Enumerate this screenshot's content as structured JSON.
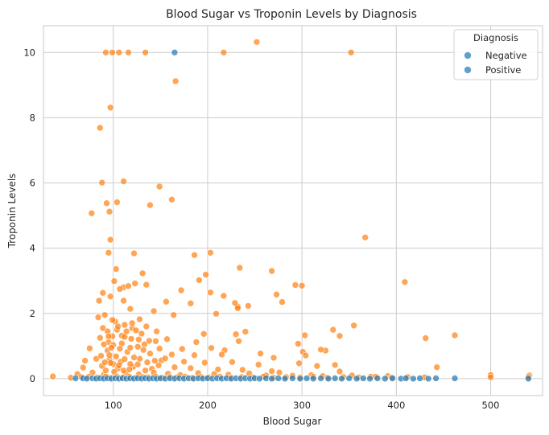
{
  "chart_data": {
    "type": "scatter",
    "title": "Blood Sugar vs Troponin Levels by Diagnosis",
    "xlabel": "Blood Sugar",
    "ylabel": "Troponin Levels",
    "xlim": [
      26,
      555
    ],
    "ylim": [
      -0.52,
      10.82
    ],
    "xticks": [
      100,
      200,
      300,
      400,
      500
    ],
    "yticks": [
      0,
      2,
      4,
      6,
      8,
      10
    ],
    "grid": true,
    "legend": {
      "title": "Diagnosis",
      "placement": "top-right",
      "entries": [
        "Negative",
        "Positive"
      ]
    },
    "series": [
      {
        "name": "Positive",
        "color": "#ff7f0e",
        "points": [
          [
            92,
            10
          ],
          [
            99,
            10
          ],
          [
            106,
            10
          ],
          [
            116,
            10
          ],
          [
            134,
            10
          ],
          [
            217,
            10
          ],
          [
            252,
            10.32
          ],
          [
            352,
            10
          ],
          [
            166,
            9.12
          ],
          [
            97,
            8.31
          ],
          [
            86,
            7.69
          ],
          [
            111,
            6.05
          ],
          [
            88,
            6.01
          ],
          [
            149,
            5.89
          ],
          [
            104,
            5.41
          ],
          [
            93,
            5.38
          ],
          [
            162,
            5.49
          ],
          [
            139,
            5.32
          ],
          [
            96,
            5.12
          ],
          [
            77,
            5.07
          ],
          [
            367,
            4.33
          ],
          [
            97,
            4.26
          ],
          [
            95,
            3.86
          ],
          [
            122,
            3.84
          ],
          [
            203,
            3.86
          ],
          [
            186,
            3.79
          ],
          [
            234,
            3.4
          ],
          [
            103,
            3.36
          ],
          [
            268,
            3.3
          ],
          [
            131,
            3.23
          ],
          [
            198,
            3.19
          ],
          [
            101,
            2.99
          ],
          [
            409,
            2.96
          ],
          [
            191,
            3.02
          ],
          [
            300,
            2.85
          ],
          [
            123,
            2.92
          ],
          [
            135,
            2.88
          ],
          [
            111,
            2.8
          ],
          [
            116,
            2.84
          ],
          [
            293,
            2.87
          ],
          [
            89,
            2.63
          ],
          [
            97,
            2.52
          ],
          [
            107,
            2.75
          ],
          [
            172,
            2.71
          ],
          [
            203,
            2.64
          ],
          [
            232,
            2.21
          ],
          [
            273,
            2.58
          ],
          [
            243,
            2.23
          ],
          [
            85,
            2.39
          ],
          [
            111,
            2.39
          ],
          [
            156,
            2.36
          ],
          [
            217,
            2.54
          ],
          [
            229,
            2.32
          ],
          [
            232,
            2.16
          ],
          [
            279,
            2.35
          ],
          [
            84,
            1.88
          ],
          [
            118,
            2.14
          ],
          [
            102,
            1.75
          ],
          [
            91,
            1.95
          ],
          [
            143,
            2.07
          ],
          [
            164,
            1.95
          ],
          [
            182,
            2.31
          ],
          [
            209,
            1.99
          ],
          [
            355,
            1.63
          ],
          [
            120,
            1.55
          ],
          [
            130,
            1.38
          ],
          [
            146,
            1.45
          ],
          [
            196,
            1.37
          ],
          [
            230,
            1.36
          ],
          [
            240,
            1.44
          ],
          [
            303,
            1.33
          ],
          [
            340,
            1.31
          ],
          [
            86,
            1.25
          ],
          [
            95,
            1.12
          ],
          [
            109,
            1.08
          ],
          [
            138,
            1.16
          ],
          [
            157,
            1.21
          ],
          [
            188,
            1.12
          ],
          [
            233,
            1.15
          ],
          [
            296,
            1.07
          ],
          [
            333,
            1.5
          ],
          [
            431,
            1.24
          ],
          [
            462,
            1.33
          ],
          [
            100,
            1.03
          ],
          [
            126,
            0.98
          ],
          [
            149,
            0.92
          ],
          [
            173,
            0.91
          ],
          [
            204,
            0.94
          ],
          [
            218,
            0.87
          ],
          [
            256,
            0.77
          ],
          [
            301,
            0.82
          ],
          [
            325,
            0.86
          ],
          [
            75,
            0.93
          ],
          [
            94,
            0.86
          ],
          [
            115,
            0.82
          ],
          [
            139,
            0.77
          ],
          [
            162,
            0.74
          ],
          [
            186,
            0.72
          ],
          [
            215,
            0.74
          ],
          [
            270,
            0.64
          ],
          [
            320,
            0.89
          ],
          [
            304,
            0.71
          ],
          [
            70,
            0.55
          ],
          [
            82,
            0.61
          ],
          [
            96,
            0.58
          ],
          [
            108,
            0.52
          ],
          [
            128,
            0.61
          ],
          [
            151,
            0.56
          ],
          [
            175,
            0.52
          ],
          [
            197,
            0.49
          ],
          [
            226,
            0.51
          ],
          [
            254,
            0.43
          ],
          [
            297,
            0.47
          ],
          [
            335,
            0.42
          ],
          [
            443,
            0.35
          ],
          [
            68,
            0.34
          ],
          [
            88,
            0.39
          ],
          [
            105,
            0.31
          ],
          [
            121,
            0.36
          ],
          [
            141,
            0.3
          ],
          [
            165,
            0.35
          ],
          [
            182,
            0.32
          ],
          [
            211,
            0.28
          ],
          [
            237,
            0.27
          ],
          [
            268,
            0.23
          ],
          [
            316,
            0.39
          ],
          [
            340,
            0.22
          ],
          [
            62,
            0.14
          ],
          [
            78,
            0.19
          ],
          [
            90,
            0.12
          ],
          [
            101,
            0.21
          ],
          [
            113,
            0.16
          ],
          [
            127,
            0.13
          ],
          [
            143,
            0.18
          ],
          [
            158,
            0.15
          ],
          [
            171,
            0.11
          ],
          [
            190,
            0.17
          ],
          [
            207,
            0.14
          ],
          [
            222,
            0.12
          ],
          [
            244,
            0.16
          ],
          [
            262,
            0.1
          ],
          [
            276,
            0.19
          ],
          [
            290,
            0.09
          ],
          [
            310,
            0.11
          ],
          [
            322,
            0.08
          ],
          [
            353,
            0.1
          ],
          [
            373,
            0.06
          ],
          [
            391,
            0.08
          ],
          [
            500,
            0.11
          ],
          [
            541,
            0.1
          ],
          [
            36,
            0.07
          ],
          [
            55,
            0.03
          ],
          [
            66,
            0.05
          ],
          [
            74,
            0.06
          ],
          [
            83,
            0.04
          ],
          [
            92,
            0.07
          ],
          [
            98,
            0.03
          ],
          [
            104,
            0.06
          ],
          [
            110,
            0.04
          ],
          [
            117,
            0.06
          ],
          [
            124,
            0.03
          ],
          [
            131,
            0.05
          ],
          [
            137,
            0.04
          ],
          [
            145,
            0.06
          ],
          [
            152,
            0.03
          ],
          [
            160,
            0.05
          ],
          [
            167,
            0.04
          ],
          [
            176,
            0.06
          ],
          [
            184,
            0.03
          ],
          [
            193,
            0.05
          ],
          [
            201,
            0.04
          ],
          [
            213,
            0.06
          ],
          [
            225,
            0.03
          ],
          [
            236,
            0.05
          ],
          [
            248,
            0.04
          ],
          [
            259,
            0.06
          ],
          [
            270,
            0.03
          ],
          [
            283,
            0.05
          ],
          [
            298,
            0.04
          ],
          [
            312,
            0.06
          ],
          [
            327,
            0.03
          ],
          [
            344,
            0.05
          ],
          [
            360,
            0.04
          ],
          [
            378,
            0.06
          ],
          [
            395,
            0.03
          ],
          [
            412,
            0.05
          ],
          [
            430,
            0.04
          ],
          [
            500,
            0.04
          ],
          [
            540,
            0.05
          ],
          [
            94,
            1.45
          ],
          [
            99,
            1.3
          ],
          [
            104,
            1.5
          ],
          [
            109,
            1.32
          ],
          [
            114,
            1.45
          ],
          [
            119,
            1.22
          ],
          [
            124,
            1.48
          ],
          [
            90,
            1.05
          ],
          [
            98,
            0.95
          ],
          [
            112,
            1.28
          ],
          [
            118,
            0.95
          ],
          [
            127,
            1.2
          ],
          [
            133,
            1.05
          ],
          [
            145,
            1.15
          ],
          [
            96,
            0.72
          ],
          [
            103,
            0.68
          ],
          [
            107,
            0.92
          ],
          [
            122,
            0.65
          ],
          [
            132,
            0.88
          ],
          [
            100,
            0.45
          ],
          [
            106,
            0.41
          ],
          [
            112,
            0.6
          ],
          [
            118,
            0.45
          ],
          [
            136,
            0.5
          ],
          [
            148,
            0.41
          ],
          [
            155,
            0.62
          ],
          [
            92,
            0.25
          ],
          [
            97,
            0.48
          ],
          [
            111,
            0.25
          ],
          [
            117,
            0.28
          ],
          [
            126,
            0.44
          ],
          [
            134,
            0.25
          ],
          [
            144,
            0.55
          ],
          [
            87,
            0.7
          ],
          [
            91,
            0.5
          ],
          [
            99,
            1.8
          ],
          [
            105,
            1.6
          ],
          [
            112,
            1.65
          ],
          [
            120,
            1.7
          ],
          [
            128,
            1.82
          ],
          [
            135,
            1.6
          ],
          [
            89,
            1.55
          ],
          [
            95,
            1.3
          ]
        ]
      },
      {
        "name": "Negative",
        "color": "#1f77b4",
        "points": [
          [
            165,
            10
          ],
          [
            60,
            0.01
          ],
          [
            68,
            0.01
          ],
          [
            72,
            0.0
          ],
          [
            78,
            0.01
          ],
          [
            82,
            0.0
          ],
          [
            86,
            0.01
          ],
          [
            90,
            0.0
          ],
          [
            94,
            0.01
          ],
          [
            98,
            0.0
          ],
          [
            102,
            0.01
          ],
          [
            106,
            0.0
          ],
          [
            110,
            0.01
          ],
          [
            114,
            0.0
          ],
          [
            118,
            0.01
          ],
          [
            122,
            0.0
          ],
          [
            126,
            0.01
          ],
          [
            130,
            0.0
          ],
          [
            134,
            0.01
          ],
          [
            138,
            0.0
          ],
          [
            142,
            0.01
          ],
          [
            146,
            0.0
          ],
          [
            150,
            0.01
          ],
          [
            155,
            0.0
          ],
          [
            160,
            0.01
          ],
          [
            165,
            0.0
          ],
          [
            170,
            0.01
          ],
          [
            175,
            0.0
          ],
          [
            180,
            0.01
          ],
          [
            185,
            0.0
          ],
          [
            190,
            0.01
          ],
          [
            195,
            0.0
          ],
          [
            200,
            0.01
          ],
          [
            205,
            0.0
          ],
          [
            210,
            0.01
          ],
          [
            215,
            0.0
          ],
          [
            220,
            0.01
          ],
          [
            225,
            0.0
          ],
          [
            230,
            0.01
          ],
          [
            235,
            0.0
          ],
          [
            240,
            0.01
          ],
          [
            245,
            0.0
          ],
          [
            250,
            0.01
          ],
          [
            255,
            0.0
          ],
          [
            262,
            0.01
          ],
          [
            268,
            0.0
          ],
          [
            275,
            0.01
          ],
          [
            282,
            0.0
          ],
          [
            290,
            0.01
          ],
          [
            298,
            0.0
          ],
          [
            305,
            0.01
          ],
          [
            312,
            0.0
          ],
          [
            320,
            0.01
          ],
          [
            328,
            0.0
          ],
          [
            335,
            0.01
          ],
          [
            342,
            0.0
          ],
          [
            350,
            0.01
          ],
          [
            358,
            0.0
          ],
          [
            365,
            0.01
          ],
          [
            372,
            0.0
          ],
          [
            380,
            0.01
          ],
          [
            388,
            0.0
          ],
          [
            396,
            0.01
          ],
          [
            405,
            0.0
          ],
          [
            410,
            0.01
          ],
          [
            418,
            0.0
          ],
          [
            425,
            0.01
          ],
          [
            434,
            0.0
          ],
          [
            442,
            0.01
          ],
          [
            462,
            0.01
          ],
          [
            540,
            0.0
          ]
        ]
      }
    ]
  }
}
